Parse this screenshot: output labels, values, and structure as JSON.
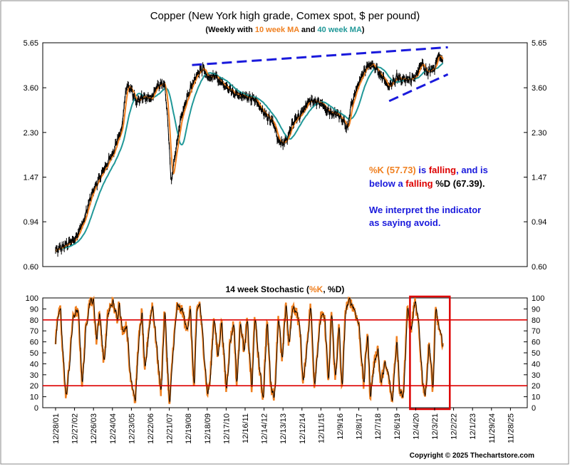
{
  "chart_data": [
    {
      "type": "line",
      "title": "Copper (New York high grade, Comex spot, $ per pound)",
      "subtitle": {
        "prefix": "(Weekly with ",
        "ma10": "10 week MA",
        "mid": " and ",
        "ma40": "40 week MA",
        "suffix": ")"
      },
      "y_scale": "log",
      "ylim": [
        0.6,
        5.65
      ],
      "y_ticks": [
        "0.60",
        "0.94",
        "1.47",
        "2.30",
        "3.60",
        "5.65"
      ],
      "series": [
        {
          "name": "Weekly price",
          "color": "#000000"
        },
        {
          "name": "10 week MA",
          "color": "#F08020"
        },
        {
          "name": "40 week MA",
          "color": "#209898"
        }
      ],
      "price_anchors": [
        [
          0,
          0.7
        ],
        [
          0.25,
          0.72
        ],
        [
          0.6,
          0.75
        ],
        [
          1.0,
          0.78
        ],
        [
          1.5,
          0.95
        ],
        [
          2.0,
          1.3
        ],
        [
          2.5,
          1.55
        ],
        [
          3.0,
          1.85
        ],
        [
          3.5,
          2.4
        ],
        [
          3.75,
          3.7
        ],
        [
          4.0,
          3.5
        ],
        [
          4.3,
          3.1
        ],
        [
          4.6,
          3.3
        ],
        [
          5.0,
          3.2
        ],
        [
          5.3,
          3.6
        ],
        [
          5.6,
          3.75
        ],
        [
          5.75,
          3.7
        ],
        [
          6.0,
          2.0
        ],
        [
          6.1,
          1.35
        ],
        [
          6.3,
          1.8
        ],
        [
          6.6,
          2.6
        ],
        [
          7.0,
          3.4
        ],
        [
          7.5,
          4.2
        ],
        [
          7.8,
          4.4
        ],
        [
          8.0,
          4.0
        ],
        [
          8.5,
          4.0
        ],
        [
          9.0,
          3.6
        ],
        [
          9.5,
          3.4
        ],
        [
          10.0,
          3.3
        ],
        [
          10.5,
          3.2
        ],
        [
          11.0,
          2.8
        ],
        [
          11.5,
          2.5
        ],
        [
          11.75,
          2.1
        ],
        [
          12.0,
          2.05
        ],
        [
          12.25,
          2.2
        ],
        [
          12.5,
          2.5
        ],
        [
          13.0,
          2.8
        ],
        [
          13.5,
          3.2
        ],
        [
          14.0,
          3.1
        ],
        [
          14.5,
          2.8
        ],
        [
          15.0,
          2.75
        ],
        [
          15.4,
          2.4
        ],
        [
          15.6,
          3.0
        ],
        [
          16.0,
          3.8
        ],
        [
          16.4,
          4.4
        ],
        [
          16.7,
          4.6
        ],
        [
          17.0,
          4.3
        ],
        [
          17.3,
          3.9
        ],
        [
          17.6,
          3.6
        ],
        [
          18.0,
          4.0
        ],
        [
          18.5,
          3.9
        ],
        [
          19.0,
          4.0
        ],
        [
          19.3,
          4.6
        ],
        [
          19.6,
          4.2
        ],
        [
          20.0,
          4.4
        ],
        [
          20.2,
          5.1
        ],
        [
          20.45,
          4.6
        ]
      ],
      "annotation": {
        "k_label": "%K (57.73)",
        "is": " is ",
        "falling1": "falling",
        "and_is": ", and is",
        "below_a": "below a ",
        "falling2": "falling",
        "d_label": " %D (67.39).",
        "interpret1": "We interpret the indicator",
        "interpret2": "as saying avoid."
      },
      "trendlines": [
        {
          "style": "dashed",
          "from": [
            7.2,
            4.52
          ],
          "to": [
            20.7,
            5.4
          ]
        },
        {
          "style": "dashed",
          "from": [
            17.6,
            3.15
          ],
          "to": [
            20.7,
            4.12
          ]
        }
      ]
    },
    {
      "type": "line",
      "title_prefix": "14 week Stochastic (",
      "k_label": "%K",
      "sep": ", ",
      "d_label": "%D",
      "title_suffix": ")",
      "ylim": [
        0,
        100
      ],
      "y_ticks": [
        "0",
        "10",
        "20",
        "30",
        "40",
        "50",
        "60",
        "70",
        "80",
        "90",
        "100"
      ],
      "reference_lines": [
        20,
        80
      ],
      "reference_color": "#DD0000",
      "series": [
        {
          "name": "%K",
          "color": "#F08020"
        },
        {
          "name": "%D",
          "color": "#000000"
        }
      ],
      "k_anchors": [
        [
          0,
          60
        ],
        [
          0.1,
          85
        ],
        [
          0.25,
          88
        ],
        [
          0.35,
          55
        ],
        [
          0.55,
          8
        ],
        [
          0.7,
          35
        ],
        [
          0.9,
          80
        ],
        [
          1.05,
          88
        ],
        [
          1.2,
          85
        ],
        [
          1.4,
          20
        ],
        [
          1.6,
          75
        ],
        [
          1.8,
          98
        ],
        [
          2.0,
          97
        ],
        [
          2.15,
          60
        ],
        [
          2.3,
          88
        ],
        [
          2.55,
          40
        ],
        [
          2.75,
          85
        ],
        [
          3.0,
          97
        ],
        [
          3.25,
          80
        ],
        [
          3.35,
          98
        ],
        [
          3.5,
          70
        ],
        [
          3.75,
          75
        ],
        [
          3.9,
          35
        ],
        [
          4.2,
          5
        ],
        [
          4.35,
          55
        ],
        [
          4.55,
          88
        ],
        [
          4.7,
          30
        ],
        [
          4.9,
          70
        ],
        [
          5.1,
          95
        ],
        [
          5.3,
          60
        ],
        [
          5.55,
          12
        ],
        [
          5.75,
          90
        ],
        [
          6.0,
          0
        ],
        [
          6.2,
          55
        ],
        [
          6.4,
          92
        ],
        [
          6.7,
          88
        ],
        [
          6.9,
          70
        ],
        [
          7.1,
          90
        ],
        [
          7.3,
          15
        ],
        [
          7.45,
          90
        ],
        [
          7.6,
          95
        ],
        [
          7.8,
          55
        ],
        [
          8.0,
          12
        ],
        [
          8.15,
          25
        ],
        [
          8.35,
          85
        ],
        [
          8.55,
          45
        ],
        [
          8.75,
          80
        ],
        [
          9.0,
          15
        ],
        [
          9.2,
          60
        ],
        [
          9.4,
          78
        ],
        [
          9.55,
          20
        ],
        [
          9.75,
          80
        ],
        [
          9.95,
          50
        ],
        [
          10.1,
          80
        ],
        [
          10.35,
          15
        ],
        [
          10.5,
          85
        ],
        [
          10.75,
          35
        ],
        [
          10.95,
          8
        ],
        [
          11.15,
          80
        ],
        [
          11.35,
          20
        ],
        [
          11.55,
          10
        ],
        [
          11.75,
          85
        ],
        [
          11.95,
          40
        ],
        [
          12.15,
          98
        ],
        [
          12.3,
          55
        ],
        [
          12.5,
          92
        ],
        [
          12.7,
          88
        ],
        [
          12.9,
          70
        ],
        [
          13.05,
          20
        ],
        [
          13.3,
          65
        ],
        [
          13.45,
          95
        ],
        [
          13.65,
          20
        ],
        [
          13.85,
          60
        ],
        [
          14.0,
          85
        ],
        [
          14.2,
          80
        ],
        [
          14.4,
          20
        ],
        [
          14.55,
          90
        ],
        [
          14.75,
          25
        ],
        [
          14.95,
          75
        ],
        [
          15.1,
          15
        ],
        [
          15.3,
          90
        ],
        [
          15.5,
          98
        ],
        [
          15.75,
          90
        ],
        [
          16.0,
          75
        ],
        [
          16.25,
          20
        ],
        [
          16.45,
          70
        ],
        [
          16.6,
          10
        ],
        [
          16.8,
          40
        ],
        [
          17.0,
          55
        ],
        [
          17.15,
          20
        ],
        [
          17.35,
          40
        ],
        [
          17.55,
          30
        ],
        [
          17.75,
          5
        ],
        [
          18.0,
          65
        ],
        [
          18.15,
          15
        ],
        [
          18.35,
          12
        ],
        [
          18.55,
          90
        ],
        [
          18.75,
          70
        ],
        [
          18.95,
          97
        ],
        [
          19.15,
          75
        ],
        [
          19.35,
          25
        ],
        [
          19.5,
          10
        ],
        [
          19.7,
          60
        ],
        [
          19.9,
          15
        ],
        [
          20.05,
          90
        ],
        [
          20.3,
          65
        ],
        [
          20.45,
          58
        ]
      ],
      "highlight_box": {
        "from": 18.7,
        "to": 20.8,
        "color": "#DD0000"
      }
    }
  ],
  "x_axis": {
    "labels": [
      "12/28/01",
      "12/27/02",
      "12/26/03",
      "12/24/04",
      "12/23/05",
      "12/22/06",
      "12/21/07",
      "12/19/08",
      "12/18/09",
      "12/17/10",
      "12/16/11",
      "12/14/12",
      "12/13/13",
      "12/12/14",
      "12/11/15",
      "12/9/16",
      "12/8/17",
      "12/7/18",
      "12/6/19",
      "12/4/20",
      "12/3/21",
      "12/2/22",
      "12/1/23",
      "11/29/24",
      "11/28/25"
    ]
  },
  "copyright": "Copyright © 2025 Thechartstore.com"
}
